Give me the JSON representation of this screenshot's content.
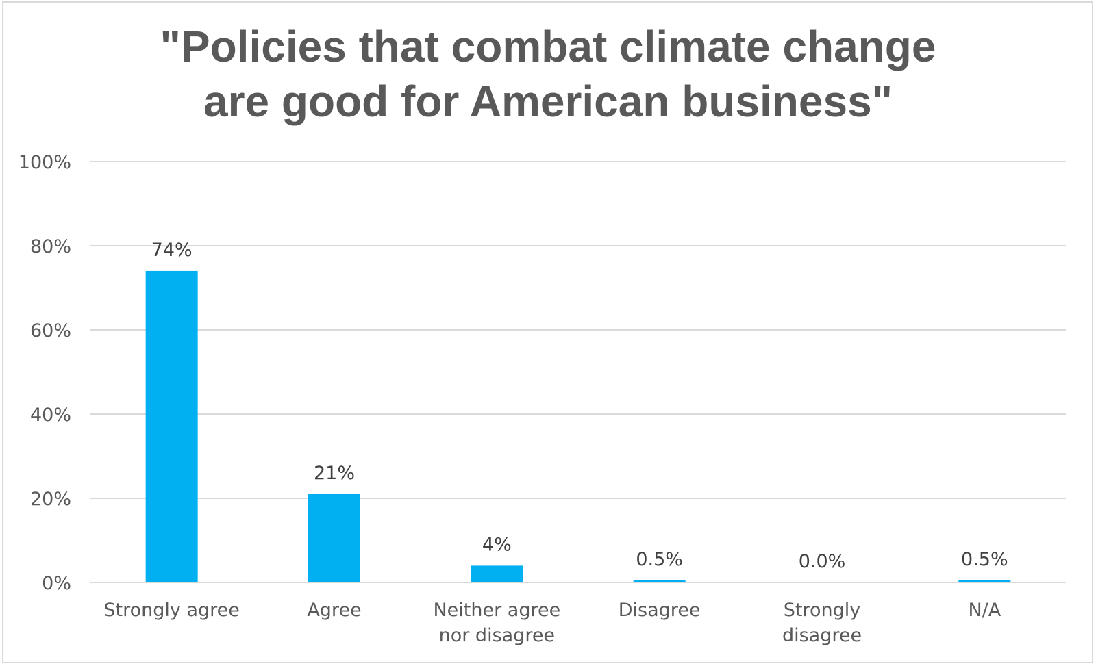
{
  "chart_data": {
    "type": "bar",
    "title_lines": [
      "\"Policies that combat climate change",
      "are good for American business\""
    ],
    "categories": [
      [
        "Strongly agree"
      ],
      [
        "Agree"
      ],
      [
        "Neither agree",
        "nor disagree"
      ],
      [
        "Disagree"
      ],
      [
        "Strongly",
        "disagree"
      ],
      [
        "N/A"
      ]
    ],
    "values": [
      74,
      21,
      4,
      0.5,
      0.0,
      0.5
    ],
    "data_labels": [
      "74%",
      "21%",
      "4%",
      "0.5%",
      "0.0%",
      "0.5%"
    ],
    "y_ticks": [
      0,
      20,
      40,
      60,
      80,
      100
    ],
    "y_tick_labels": [
      "0%",
      "20%",
      "40%",
      "60%",
      "80%",
      "100%"
    ],
    "ylim": [
      0,
      100
    ],
    "grid": true,
    "legend": "none",
    "colors": {
      "bar": "#00b0f0",
      "grid": "#d9d9d9",
      "text": "#595959"
    }
  }
}
